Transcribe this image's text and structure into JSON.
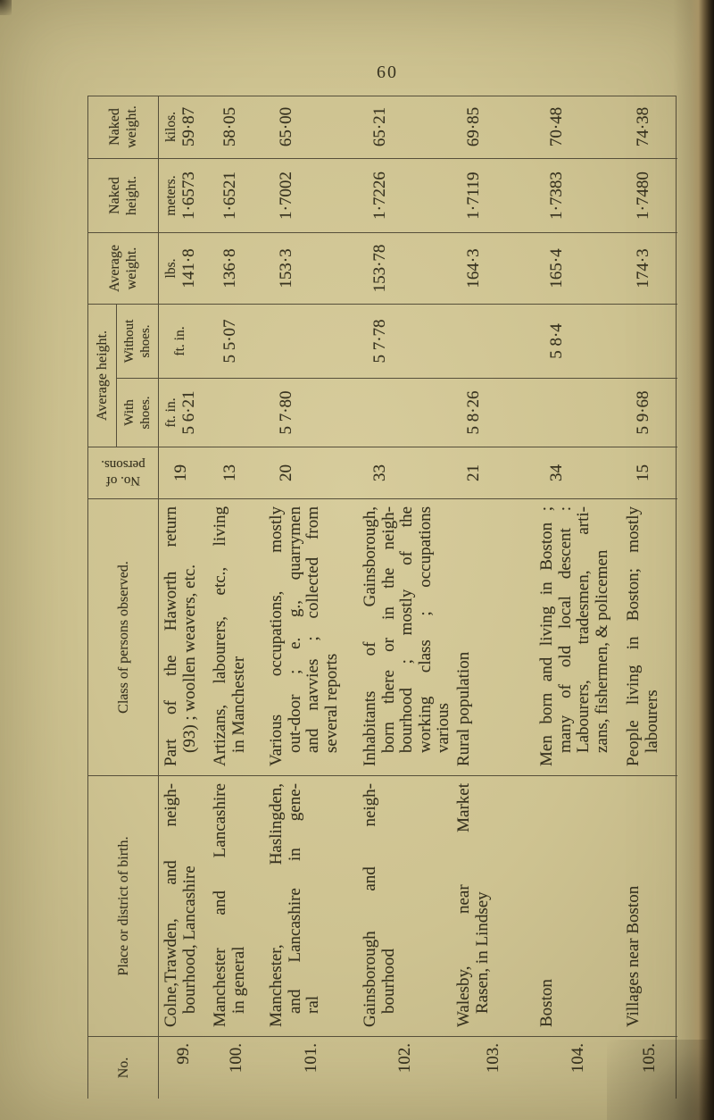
{
  "page": {
    "number": "60"
  },
  "colors": {
    "paper": "#cec391",
    "paper_light": "#d7cc9c",
    "ink": "#37321f",
    "table_line": "#564f3a",
    "page_edge_dark": "#17120a"
  },
  "table": {
    "headers": {
      "no": [
        "No."
      ],
      "place": [
        "Place or district of birth."
      ],
      "class_observed": [
        "Class of persons observed."
      ],
      "persons": [
        "No. of",
        "persons."
      ],
      "avg_height_group": [
        "Average height."
      ],
      "with_shoes": [
        "With",
        "shoes."
      ],
      "without_shoes": [
        "Without",
        "shoes."
      ],
      "avg_weight": [
        "Average",
        "weight."
      ],
      "naked_height": [
        "Naked",
        "height."
      ],
      "naked_weight": [
        "Naked",
        "weight."
      ]
    },
    "rows": [
      {
        "no": "99.",
        "place": [
          "Colne,Trawden, and neigh-",
          "bourhood, Lancashire"
        ],
        "class_observed": [
          "Part of the Haworth return",
          "(93) ; woollen weavers, etc."
        ],
        "persons": "19",
        "with_shoes": [
          "ft. in.",
          "5 6·21"
        ],
        "without_shoes": [
          "ft. in."
        ],
        "avg_weight": [
          "lbs.",
          "141·8"
        ],
        "naked_height": [
          "meters.",
          "1·6573"
        ],
        "naked_weight": [
          "kilos.",
          "59·87"
        ]
      },
      {
        "no": "100.",
        "place": [
          "Manchester and Lancashire",
          "in general"
        ],
        "class_observed": [
          "Artizans, labourers, etc., living",
          "in Manchester"
        ],
        "persons": "13",
        "with_shoes": [],
        "without_shoes": [
          "5 5·07"
        ],
        "avg_weight": [
          "136·8"
        ],
        "naked_height": [
          "1·6521"
        ],
        "naked_weight": [
          "58·05"
        ]
      },
      {
        "no": "101.",
        "place": [
          "Manchester, Haslingden,",
          "and Lancashire in gene-",
          "ral"
        ],
        "class_observed": [
          "Various occupations, mostly",
          "out-door ; e. g., quarrymen",
          "and navvies ; collected from",
          "several reports"
        ],
        "persons": "20",
        "with_shoes": [
          "5 7·80"
        ],
        "without_shoes": [],
        "avg_weight": [
          "153·3"
        ],
        "naked_height": [
          "1·7002"
        ],
        "naked_weight": [
          "65·00"
        ]
      },
      {
        "no": "102.",
        "place": [
          "Gainsborough and neigh-",
          "bourhood"
        ],
        "class_observed": [
          "Inhabitants of Gainsborough,",
          "born there or in the neigh-",
          "bourhood ; mostly of the",
          "working class ; occupations",
          "various"
        ],
        "persons": "33",
        "with_shoes": [],
        "without_shoes": [
          "5 7·78"
        ],
        "avg_weight": [
          "153·78"
        ],
        "naked_height": [
          "1·7226"
        ],
        "naked_weight": [
          "65·21"
        ]
      },
      {
        "no": "103.",
        "place": [
          "Walesby, near Market",
          "Rasen, in Lindsey"
        ],
        "class_observed": [
          "Rural population"
        ],
        "persons": "21",
        "with_shoes": [
          "5 8·26"
        ],
        "without_shoes": [],
        "avg_weight": [
          "164·3"
        ],
        "naked_height": [
          "1·7119"
        ],
        "naked_weight": [
          "69·85"
        ]
      },
      {
        "no": "104.",
        "place": [
          "Boston"
        ],
        "class_observed": [
          "Men born and living in Boston ;",
          "many of old local descent :",
          "Labourers, tradesmen, arti-",
          "zans, fishermen, & policemen"
        ],
        "persons": "34",
        "with_shoes": [],
        "without_shoes": [
          "5 8·4"
        ],
        "avg_weight": [
          "165·4"
        ],
        "naked_height": [
          "1·7383"
        ],
        "naked_weight": [
          "70·48"
        ]
      },
      {
        "no": "105.",
        "place": [
          "Villages near Boston"
        ],
        "class_observed": [
          "People living in Boston; mostly",
          "labourers"
        ],
        "persons": "15",
        "with_shoes": [
          "5 9·68"
        ],
        "without_shoes": [],
        "avg_weight": [
          "174·3"
        ],
        "naked_height": [
          "1·7480"
        ],
        "naked_weight": [
          "74·38"
        ]
      }
    ]
  }
}
